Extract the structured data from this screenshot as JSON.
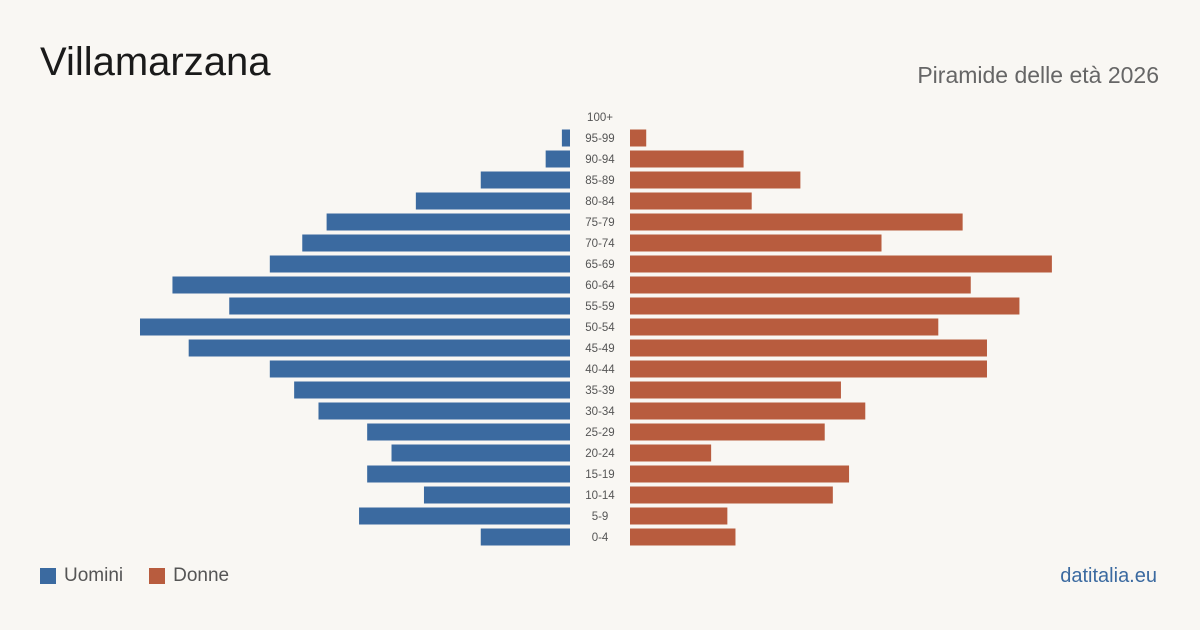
{
  "header": {
    "title": "Villamarzana",
    "subtitle": "Piramide delle età 2026"
  },
  "legend": {
    "men_label": "Uomini",
    "women_label": "Donne"
  },
  "footer": {
    "source": "datitalia.eu"
  },
  "colors": {
    "men": "#3b6aa0",
    "women": "#b85c3e",
    "background": "#f9f7f3"
  },
  "chart_data": {
    "type": "bar",
    "orientation": "horizontal-pyramid",
    "categories": [
      "100+",
      "95-99",
      "90-94",
      "85-89",
      "80-84",
      "75-79",
      "70-74",
      "65-69",
      "60-64",
      "55-59",
      "50-54",
      "45-49",
      "40-44",
      "35-39",
      "30-34",
      "25-29",
      "20-24",
      "15-19",
      "10-14",
      "5-9",
      "0-4"
    ],
    "series": [
      {
        "name": "Uomini",
        "values": [
          0,
          1,
          3,
          11,
          19,
          30,
          33,
          37,
          49,
          42,
          53,
          47,
          37,
          34,
          31,
          25,
          22,
          25,
          18,
          26,
          11
        ]
      },
      {
        "name": "Donne",
        "values": [
          0,
          2,
          14,
          21,
          15,
          41,
          31,
          52,
          42,
          48,
          38,
          44,
          44,
          26,
          29,
          24,
          10,
          27,
          25,
          12,
          13
        ]
      }
    ],
    "grid": false,
    "legend_position": "bottom-left"
  }
}
